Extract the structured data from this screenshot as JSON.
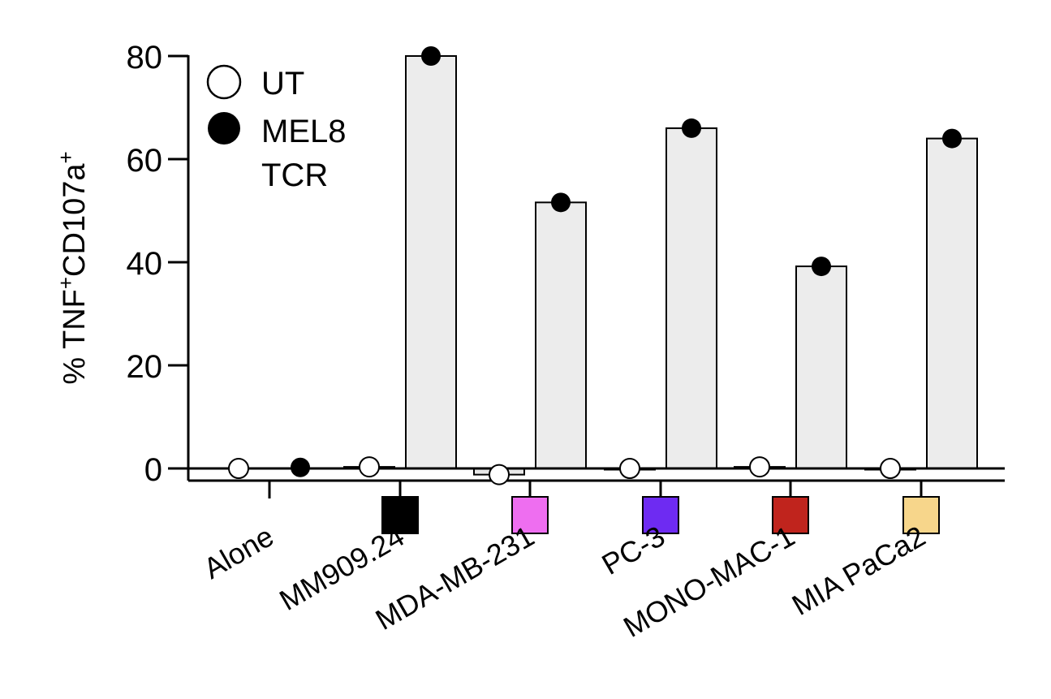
{
  "chart_data": {
    "type": "bar",
    "title": "",
    "xlabel": "",
    "ylabel_parts": [
      "% TNF",
      "+",
      "CD107a",
      "+"
    ],
    "ylim": [
      0,
      80
    ],
    "yticks": [
      "0",
      "20",
      "40",
      "60",
      "80"
    ],
    "grid": false,
    "legend_position": "top-left",
    "legend": [
      {
        "label": "UT",
        "marker": "open-circle"
      },
      {
        "label_lines": [
          "MEL8",
          "TCR"
        ],
        "marker": "filled-circle"
      }
    ],
    "categories": [
      "Alone",
      "MM909.24",
      "MDA-MB-231",
      "PC-3",
      "MONO-MAC-1",
      "MIA PaCa2"
    ],
    "category_colors": [
      "",
      "#000000",
      "#ee6ef0",
      "#6e2bf2",
      "#c0241d",
      "#f7d68b"
    ],
    "series": [
      {
        "name": "UT",
        "values": [
          0,
          0.3,
          -1.2,
          0,
          0.3,
          0
        ],
        "bar_color": "#e8e8e8"
      },
      {
        "name": "MEL8 TCR",
        "values": [
          0.2,
          80,
          51.6,
          66,
          39.2,
          64
        ],
        "bar_color": "#ececec"
      }
    ]
  }
}
